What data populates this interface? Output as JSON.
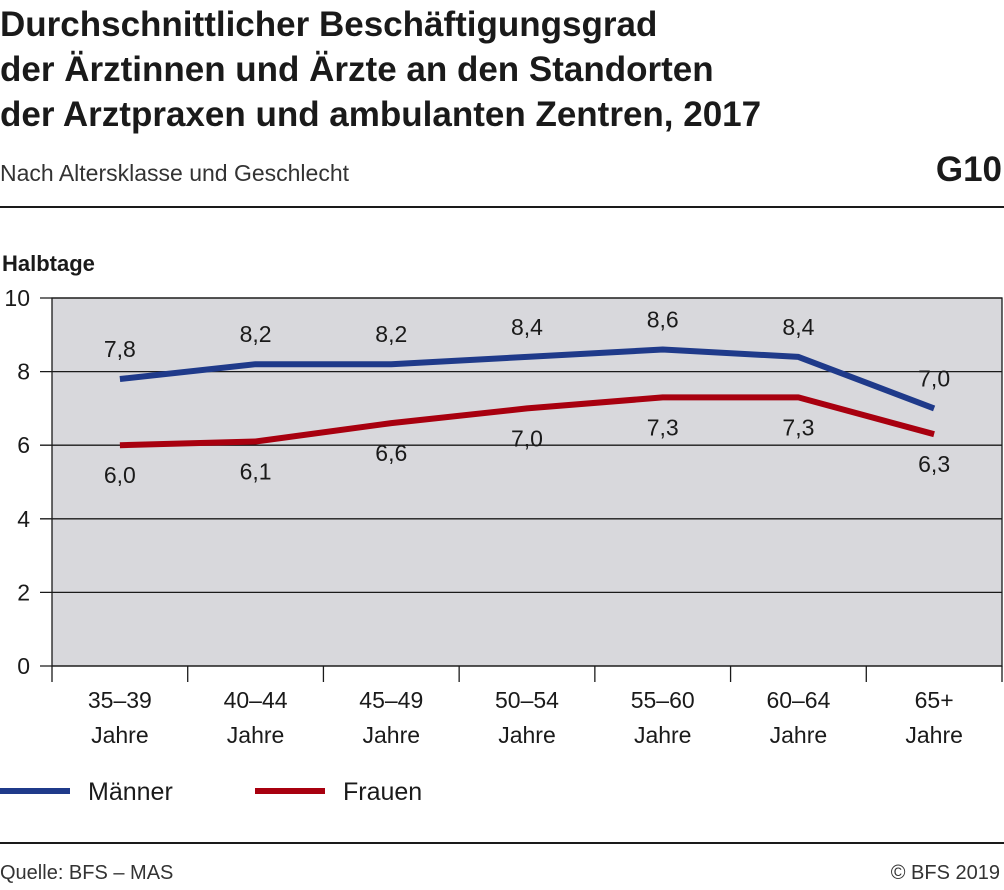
{
  "header": {
    "title_lines": [
      "Durchschnittlicher Beschäftigungsgrad",
      "der Ärztinnen und Ärzte an den Standorten",
      "der Arztpraxen und ambulanten Zentren, 2017"
    ],
    "subtitle": "Nach Altersklasse und Geschlecht",
    "figure_id": "G10"
  },
  "footer": {
    "source": "Quelle: BFS – MAS",
    "copyright": "© BFS 2019"
  },
  "colors": {
    "plot_background": "#d8d8dc",
    "grid": "#1a1a1a",
    "maenner": "#1f3a8a",
    "frauen": "#a8000f"
  },
  "chart_data": {
    "type": "line",
    "title": "Durchschnittlicher Beschäftigungsgrad der Ärztinnen und Ärzte an den Standorten der Arztpraxen und ambulanten Zentren, 2017",
    "subtitle": "Nach Altersklasse und Geschlecht",
    "ylabel": "Halbtage",
    "xlabel": "",
    "ylim": [
      0,
      10
    ],
    "yticks": [
      "0",
      "2",
      "4",
      "6",
      "8",
      "10"
    ],
    "grid": true,
    "legend_position": "bottom",
    "categories": [
      [
        "35–39",
        "Jahre"
      ],
      [
        "40–44",
        "Jahre"
      ],
      [
        "45–49",
        "Jahre"
      ],
      [
        "50–54",
        "Jahre"
      ],
      [
        "55–60",
        "Jahre"
      ],
      [
        "60–64",
        "Jahre"
      ],
      [
        "65+",
        "Jahre"
      ]
    ],
    "series": [
      {
        "name": "Männer",
        "color": "#1f3a8a",
        "values": [
          7.8,
          8.2,
          8.2,
          8.4,
          8.6,
          8.4,
          7.0
        ],
        "labels": [
          "7,8",
          "8,2",
          "8,2",
          "8,4",
          "8,6",
          "8,4",
          "7,0"
        ]
      },
      {
        "name": "Frauen",
        "color": "#a8000f",
        "values": [
          6.0,
          6.1,
          6.6,
          7.0,
          7.3,
          7.3,
          6.3
        ],
        "labels": [
          "6,0",
          "6,1",
          "6,6",
          "7,0",
          "7,3",
          "7,3",
          "6,3"
        ]
      }
    ]
  }
}
